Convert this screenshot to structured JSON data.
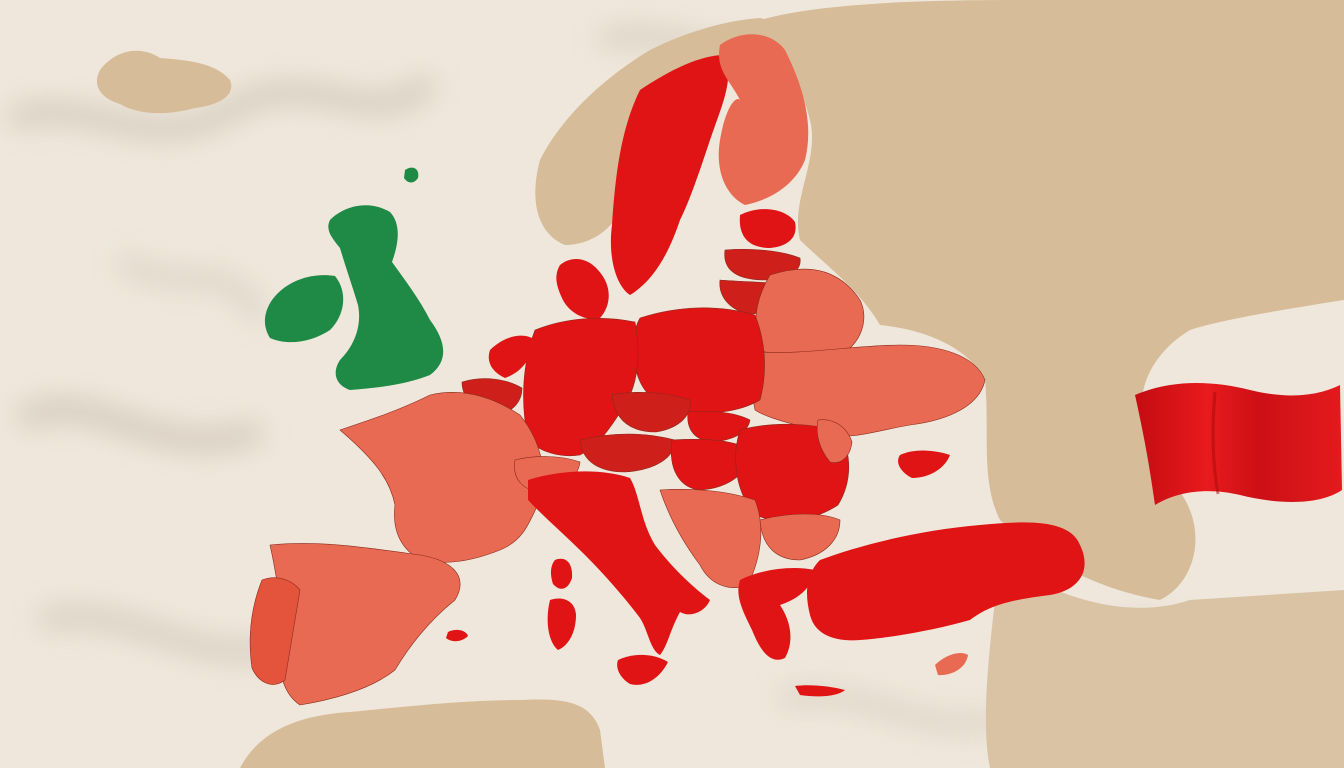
{
  "map": {
    "colors": {
      "paper": "#efe7db",
      "paper_shadow": "#c9bfb2",
      "sea": "#f3ede3",
      "land_neutral": "#d6bc98",
      "red_strong": "#e01414",
      "red_deep": "#cf1f1a",
      "red_medium": "#e4533c",
      "red_light": "#e86a52",
      "green": "#1e8a46",
      "border": "#8a2a1d"
    },
    "regions": [
      {
        "name": "iceland",
        "fill": "land_neutral"
      },
      {
        "name": "ireland",
        "fill": "green"
      },
      {
        "name": "great-britain",
        "fill": "green"
      },
      {
        "name": "norway",
        "fill": "land_neutral"
      },
      {
        "name": "sweden",
        "fill": "red_strong"
      },
      {
        "name": "finland",
        "fill": "red_light"
      },
      {
        "name": "denmark",
        "fill": "red_strong"
      },
      {
        "name": "estonia",
        "fill": "red_strong"
      },
      {
        "name": "latvia",
        "fill": "red_deep"
      },
      {
        "name": "lithuania",
        "fill": "red_deep"
      },
      {
        "name": "russia-east",
        "fill": "land_neutral"
      },
      {
        "name": "belarus",
        "fill": "red_light"
      },
      {
        "name": "ukraine",
        "fill": "red_light"
      },
      {
        "name": "poland",
        "fill": "red_strong"
      },
      {
        "name": "germany",
        "fill": "red_strong"
      },
      {
        "name": "netherlands",
        "fill": "red_strong"
      },
      {
        "name": "belgium",
        "fill": "red_deep"
      },
      {
        "name": "france",
        "fill": "red_light"
      },
      {
        "name": "spain",
        "fill": "red_light"
      },
      {
        "name": "portugal",
        "fill": "red_medium"
      },
      {
        "name": "switzerland",
        "fill": "red_light"
      },
      {
        "name": "czechia",
        "fill": "red_deep"
      },
      {
        "name": "austria",
        "fill": "red_deep"
      },
      {
        "name": "slovakia",
        "fill": "red_strong"
      },
      {
        "name": "hungary",
        "fill": "red_strong"
      },
      {
        "name": "romania",
        "fill": "red_strong"
      },
      {
        "name": "moldova",
        "fill": "red_light"
      },
      {
        "name": "italy",
        "fill": "red_strong"
      },
      {
        "name": "sardinia",
        "fill": "red_strong"
      },
      {
        "name": "corsica",
        "fill": "red_strong"
      },
      {
        "name": "sicily",
        "fill": "red_strong"
      },
      {
        "name": "balkans",
        "fill": "red_light"
      },
      {
        "name": "bulgaria",
        "fill": "red_light"
      },
      {
        "name": "greece",
        "fill": "red_strong"
      },
      {
        "name": "turkey",
        "fill": "red_strong"
      },
      {
        "name": "crimea",
        "fill": "red_strong"
      },
      {
        "name": "cyprus",
        "fill": "red_light"
      },
      {
        "name": "north-africa",
        "fill": "land_neutral"
      },
      {
        "name": "caucasus",
        "fill": "land_neutral"
      }
    ],
    "flag": {
      "name": "red-flag",
      "fill": "red_strong"
    }
  }
}
